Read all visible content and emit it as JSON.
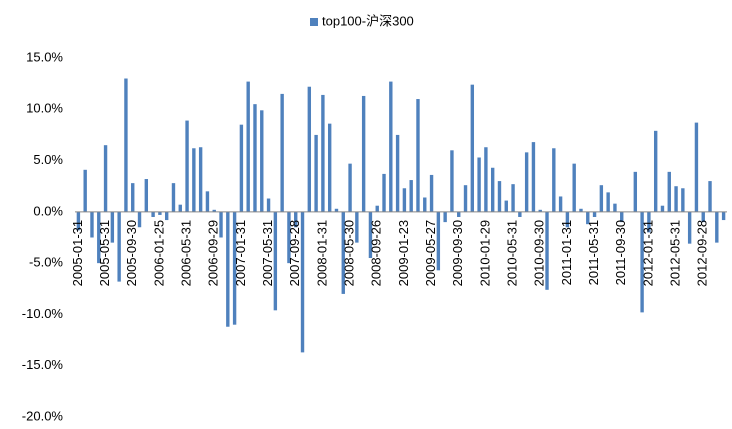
{
  "chart_data": {
    "type": "bar",
    "categories": [
      "2005-01-31",
      null,
      null,
      null,
      "2005-05-31",
      null,
      null,
      null,
      "2005-09-30",
      null,
      null,
      null,
      "2006-01-25",
      null,
      null,
      null,
      "2006-05-31",
      null,
      null,
      null,
      "2006-09-29",
      null,
      null,
      null,
      "2007-01-31",
      null,
      null,
      null,
      "2007-05-31",
      null,
      null,
      null,
      "2007-09-28",
      null,
      null,
      null,
      "2008-01-31",
      null,
      null,
      null,
      "2008-05-30",
      null,
      null,
      null,
      "2008-09-26",
      null,
      null,
      null,
      "2009-01-23",
      null,
      null,
      null,
      "2009-05-27",
      null,
      null,
      null,
      "2009-09-30",
      null,
      null,
      null,
      "2010-01-29",
      null,
      null,
      null,
      "2010-05-31",
      null,
      null,
      null,
      "2010-09-30",
      null,
      null,
      null,
      "2011-01-31",
      null,
      null,
      null,
      "2011-05-31",
      null,
      null,
      null,
      "2011-09-30",
      null,
      null,
      null,
      "2012-01-31",
      null,
      null,
      null,
      "2012-05-31",
      null,
      null,
      null,
      "2012-09-28",
      null,
      null,
      null
    ],
    "series": [
      {
        "name": "top100-沪深300",
        "color": "#4f81bd",
        "values": [
          -1.8,
          4.1,
          -2.5,
          -5.0,
          6.5,
          -3.0,
          -6.8,
          13.0,
          2.8,
          -1.5,
          3.2,
          -0.5,
          -0.3,
          -0.8,
          2.8,
          0.7,
          8.9,
          6.2,
          6.3,
          2.0,
          0.2,
          -2.5,
          -11.2,
          -11.0,
          8.5,
          12.7,
          10.5,
          9.9,
          1.3,
          -9.6,
          11.5,
          -5.0,
          -1.5,
          -13.7,
          12.2,
          7.5,
          11.4,
          8.6,
          0.3,
          -8.0,
          4.7,
          -3.0,
          11.3,
          -4.5,
          0.6,
          3.7,
          12.7,
          7.5,
          2.3,
          3.1,
          11.0,
          1.4,
          3.6,
          -5.7,
          -1.0,
          6.0,
          -0.5,
          2.6,
          12.4,
          5.3,
          6.3,
          4.3,
          3.0,
          1.1,
          2.7,
          -0.5,
          5.8,
          6.8,
          0.2,
          -7.6,
          6.2,
          1.5,
          -1.5,
          4.7,
          0.3,
          -1.2,
          -0.5,
          2.6,
          1.9,
          0.8,
          -1.0,
          0.0,
          3.9,
          -9.8,
          -2.0,
          7.9,
          0.6,
          3.9,
          2.5,
          2.3,
          -3.1,
          8.7,
          -1.0,
          3.0,
          -3.0,
          -0.8
        ]
      }
    ],
    "ylim": [
      -20,
      15
    ],
    "yticks": [
      {
        "value": -20,
        "label": "-20.0%"
      },
      {
        "value": -15,
        "label": "-15.0%"
      },
      {
        "value": -10,
        "label": "-10.0%"
      },
      {
        "value": -5,
        "label": "-5.0%"
      },
      {
        "value": 0,
        "label": "0.0%"
      },
      {
        "value": 5,
        "label": "5.0%"
      },
      {
        "value": 10,
        "label": "10.0%"
      },
      {
        "value": 15,
        "label": "15.0%"
      }
    ],
    "grid": false,
    "legend": "top"
  }
}
